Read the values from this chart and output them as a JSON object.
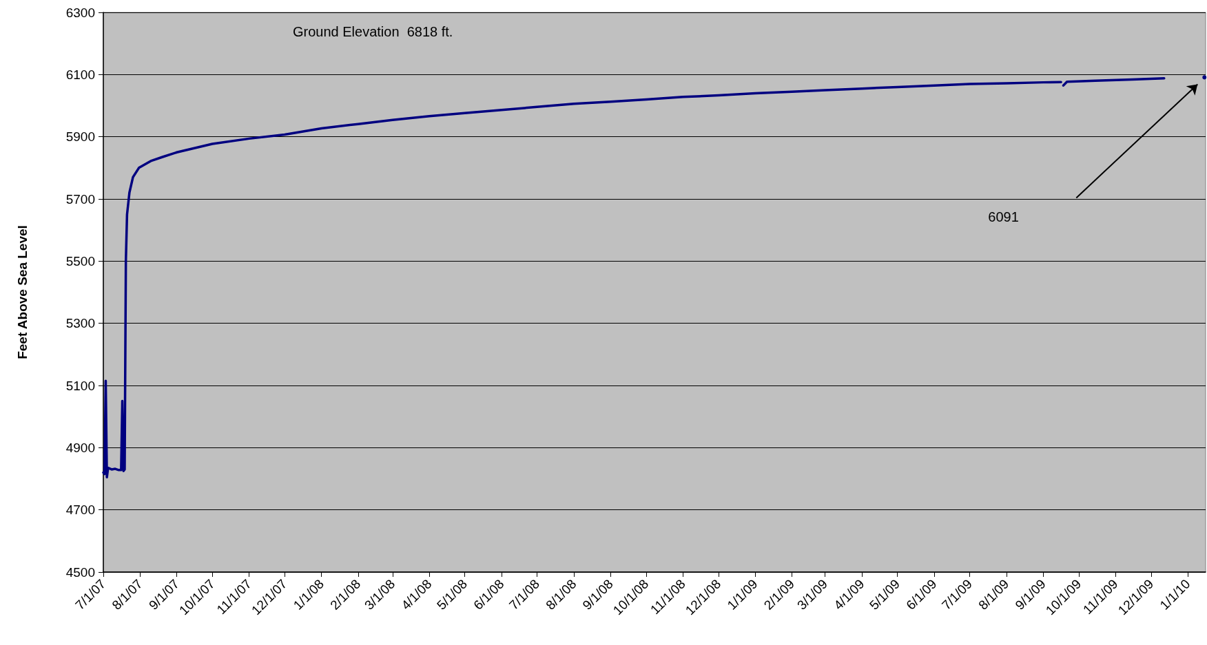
{
  "chart_data": {
    "type": "line",
    "ylabel": "Feet Above Sea Level",
    "annotations": [
      "Ground Elevation  6818 ft.",
      "6091"
    ],
    "x": [
      "2007-07-01",
      "2007-07-02",
      "2007-07-03",
      "2007-07-04",
      "2007-07-05",
      "2007-07-08",
      "2007-07-11",
      "2007-07-14",
      "2007-07-16",
      "2007-07-17",
      "2007-07-18",
      "2007-07-19",
      "2007-07-20",
      "2007-07-21",
      "2007-07-23",
      "2007-07-26",
      "2007-07-31",
      "2007-08-10",
      "2007-08-20",
      "2007-09-01",
      "2007-10-01",
      "2007-11-01",
      "2007-12-01",
      "2008-01-01",
      "2008-02-01",
      "2008-03-01",
      "2008-04-01",
      "2008-05-01",
      "2008-06-01",
      "2008-07-01",
      "2008-08-01",
      "2008-09-01",
      "2008-10-01",
      "2008-11-01",
      "2008-12-01",
      "2009-01-01",
      "2009-02-01",
      "2009-03-01",
      "2009-04-01",
      "2009-05-01",
      "2009-06-01",
      "2009-07-01",
      "2009-08-01",
      "2009-09-01",
      "2009-09-16",
      "2009-09-17",
      "2009-09-18",
      "2009-09-21",
      "2009-10-15",
      "2009-11-15",
      "2009-12-12",
      "2009-12-30",
      "2010-01-15"
    ],
    "series": [
      {
        "color": "#000080",
        "values": [
          4820,
          4815,
          5115,
          4805,
          4835,
          4830,
          4832,
          4828,
          4828,
          5050,
          4825,
          4830,
          5500,
          5650,
          5720,
          5770,
          5800,
          5822,
          5835,
          5850,
          5877,
          5894,
          5907,
          5927,
          5941,
          5954,
          5966,
          5976,
          5986,
          5996,
          6006,
          6013,
          6020,
          6028,
          6033,
          6040,
          6045,
          6050,
          6055,
          6060,
          6065,
          6070,
          6072,
          6075,
          6076,
          null,
          6065,
          6077,
          6080,
          6084,
          6088,
          null,
          6091
        ]
      }
    ],
    "xlim": [
      "2007-07-01",
      "2010-01-16"
    ],
    "xticks": [
      {
        "value": "2007-07-01",
        "label": "7/1/07"
      },
      {
        "value": "2007-08-01",
        "label": "8/1/07"
      },
      {
        "value": "2007-09-01",
        "label": "9/1/07"
      },
      {
        "value": "2007-10-01",
        "label": "10/1/07"
      },
      {
        "value": "2007-11-01",
        "label": "11/1/07"
      },
      {
        "value": "2007-12-01",
        "label": "12/1/07"
      },
      {
        "value": "2008-01-01",
        "label": "1/1/08"
      },
      {
        "value": "2008-02-01",
        "label": "2/1/08"
      },
      {
        "value": "2008-03-01",
        "label": "3/1/08"
      },
      {
        "value": "2008-04-01",
        "label": "4/1/08"
      },
      {
        "value": "2008-05-01",
        "label": "5/1/08"
      },
      {
        "value": "2008-06-01",
        "label": "6/1/08"
      },
      {
        "value": "2008-07-01",
        "label": "7/1/08"
      },
      {
        "value": "2008-08-01",
        "label": "8/1/08"
      },
      {
        "value": "2008-09-01",
        "label": "9/1/08"
      },
      {
        "value": "2008-10-01",
        "label": "10/1/08"
      },
      {
        "value": "2008-11-01",
        "label": "11/1/08"
      },
      {
        "value": "2008-12-01",
        "label": "12/1/08"
      },
      {
        "value": "2009-01-01",
        "label": "1/1/09"
      },
      {
        "value": "2009-02-01",
        "label": "2/1/09"
      },
      {
        "value": "2009-03-01",
        "label": "3/1/09"
      },
      {
        "value": "2009-04-01",
        "label": "4/1/09"
      },
      {
        "value": "2009-05-01",
        "label": "5/1/09"
      },
      {
        "value": "2009-06-01",
        "label": "6/1/09"
      },
      {
        "value": "2009-07-01",
        "label": "7/1/09"
      },
      {
        "value": "2009-08-01",
        "label": "8/1/09"
      },
      {
        "value": "2009-09-01",
        "label": "9/1/09"
      },
      {
        "value": "2009-10-01",
        "label": "10/1/09"
      },
      {
        "value": "2009-11-01",
        "label": "11/1/09"
      },
      {
        "value": "2009-12-01",
        "label": "12/1/09"
      },
      {
        "value": "2010-01-01",
        "label": "1/1/10"
      }
    ],
    "ylim": [
      4500,
      6300
    ],
    "yticks": [
      4500,
      4700,
      4900,
      5100,
      5300,
      5500,
      5700,
      5900,
      6100,
      6300
    ],
    "grid": "y",
    "marker": "none",
    "line_style": "solid"
  }
}
